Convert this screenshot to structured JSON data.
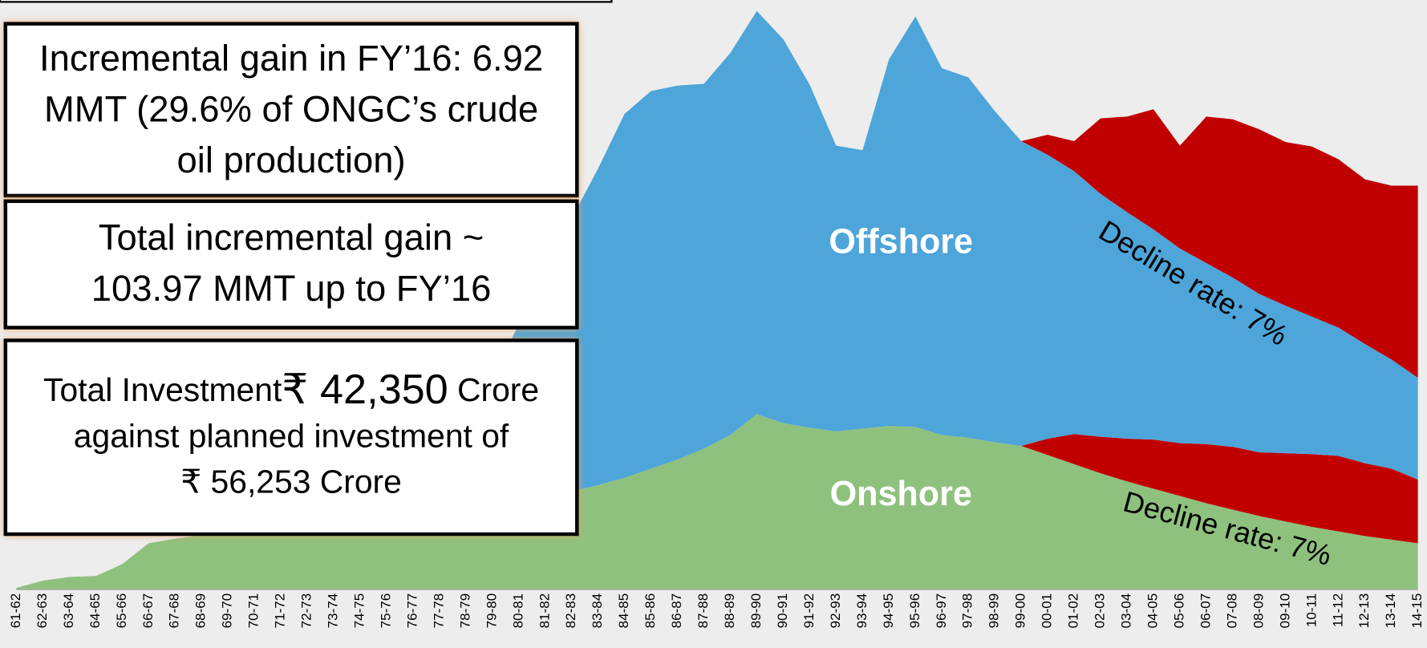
{
  "chart_data": {
    "type": "area",
    "categories": [
      "61-62",
      "62-63",
      "63-64",
      "64-65",
      "65-66",
      "66-67",
      "67-68",
      "68-69",
      "69-70",
      "70-71",
      "71-72",
      "72-73",
      "73-74",
      "74-75",
      "75-76",
      "76-77",
      "77-78",
      "78-79",
      "79-80",
      "80-81",
      "81-82",
      "82-83",
      "83-84",
      "84-85",
      "85-86",
      "86-87",
      "87-88",
      "88-89",
      "89-90",
      "90-91",
      "91-92",
      "92-93",
      "93-94",
      "94-95",
      "95-96",
      "96-97",
      "97-98",
      "98-99",
      "99-00",
      "00-01",
      "01-02",
      "02-03",
      "03-04",
      "04-05",
      "05-06",
      "06-07",
      "07-08",
      "08-09",
      "09-10",
      "10-11",
      "11-12",
      "12-13",
      "13-14",
      "14-15"
    ],
    "series": [
      {
        "name": "Onshore",
        "color": "#8fc17e",
        "values": [
          2,
          10,
          14,
          15,
          28,
          51,
          56,
          60,
          63,
          66,
          68,
          70,
          72,
          74,
          76,
          78,
          80,
          82,
          86,
          91,
          98,
          108,
          115,
          123,
          133,
          143,
          155,
          170,
          193,
          183,
          178,
          174,
          177,
          180,
          179,
          170,
          167,
          162,
          158,
          148,
          138,
          128,
          119,
          111,
          103,
          95,
          88,
          81,
          75,
          69,
          64,
          59,
          55,
          51
        ]
      },
      {
        "color": "#c00000",
        "values": [
          null,
          null,
          null,
          null,
          null,
          null,
          null,
          null,
          null,
          null,
          null,
          null,
          null,
          null,
          null,
          null,
          null,
          null,
          null,
          null,
          null,
          null,
          null,
          null,
          null,
          null,
          null,
          null,
          null,
          null,
          null,
          null,
          null,
          null,
          null,
          null,
          null,
          null,
          0,
          18,
          33,
          40,
          47,
          54,
          58,
          65,
          69,
          70,
          75,
          80,
          83,
          80,
          78,
          70
        ]
      },
      {
        "name": "Offshore",
        "color": "#4ea5d9",
        "values": [
          null,
          null,
          null,
          null,
          null,
          null,
          null,
          null,
          null,
          null,
          null,
          null,
          null,
          0,
          10,
          30,
          60,
          100,
          150,
          200,
          250,
          300,
          348,
          400,
          415,
          411,
          401,
          420,
          443,
          422,
          377,
          314,
          306,
          403,
          451,
          403,
          396,
          364,
          335,
          312,
          289,
          267,
          249,
          231,
          214,
          199,
          186,
          174,
          162,
          151,
          141,
          131,
          120,
          112
        ]
      },
      {
        "color": "#c00000",
        "values": [
          null,
          null,
          null,
          null,
          null,
          null,
          null,
          null,
          null,
          null,
          null,
          null,
          null,
          null,
          null,
          null,
          null,
          null,
          null,
          null,
          null,
          null,
          null,
          null,
          null,
          null,
          null,
          null,
          null,
          null,
          null,
          null,
          null,
          null,
          null,
          null,
          null,
          null,
          0,
          22,
          33,
          83,
          105,
          132,
          113,
          161,
          174,
          181,
          180,
          187,
          185,
          181,
          191,
          211
        ]
      }
    ],
    "ylim": [
      0,
      640
    ],
    "annotations": [
      "Decline rate: 7%",
      "Decline rate: 7%"
    ]
  },
  "boxes": [
    {
      "lines": [
        "Incremental gain in FY’16: 6.92",
        "MMT (29.6% of  ONGC’s crude",
        "oil production)"
      ]
    },
    {
      "lines": [
        "Total incremental gain ~",
        "103.97 MMT up to FY’16"
      ]
    },
    {
      "first_line": [
        "Total Investment",
        "₹ 42,350",
        "Crore"
      ],
      "lines": [
        "against planned investment of",
        "₹ 56,253 Crore"
      ]
    }
  ]
}
